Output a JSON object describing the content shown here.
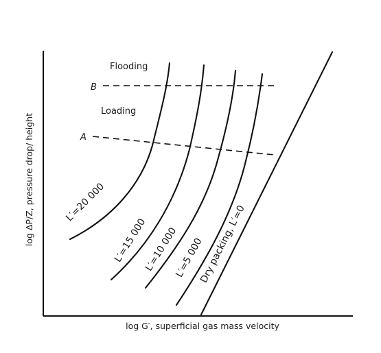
{
  "chart_data": {
    "type": "line",
    "title": "",
    "xlabel": "log G′, superficial gas mass velocity",
    "ylabel": "log ΔP/Z, pressure drop/ height",
    "grid": false,
    "legend": "none",
    "x_ticks": false,
    "y_ticks": false,
    "region_labels": [
      "Flooding",
      "Loading"
    ],
    "boundary_lines": [
      {
        "label": "B",
        "style": "dashed",
        "meaning": "flooding"
      },
      {
        "label": "A",
        "style": "dashed",
        "meaning": "loading"
      }
    ],
    "series": [
      {
        "label": "L′=20 000",
        "L": 20000
      },
      {
        "label": "L′=15 000",
        "L": 15000
      },
      {
        "label": "L′=10 000",
        "L": 10000
      },
      {
        "label": "L′=5 000",
        "L": 5000
      },
      {
        "label": "Dry packing, L′=0",
        "L": 0
      }
    ]
  }
}
